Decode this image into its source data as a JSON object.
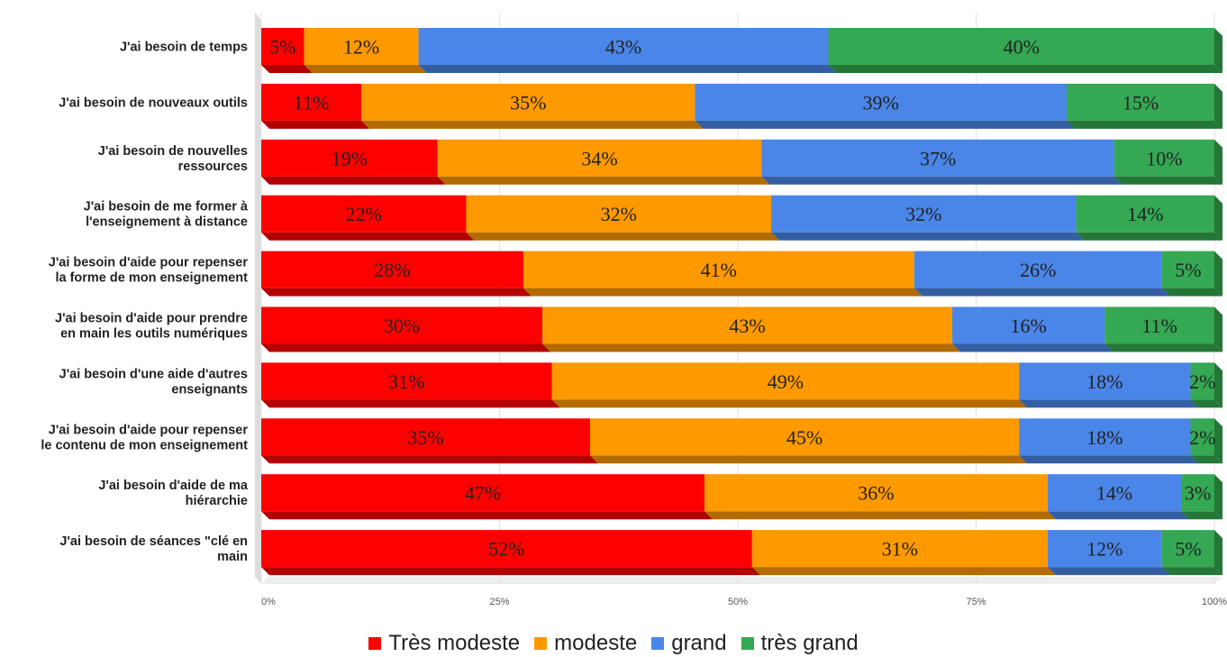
{
  "chart_data": {
    "type": "bar",
    "orientation": "horizontal",
    "stacked": true,
    "percent": true,
    "categories": [
      "J'ai besoin de temps",
      "J'ai besoin de nouveaux outils",
      "J'ai besoin de nouvelles ressources",
      "J'ai besoin de me former à l'enseignement à distance",
      "J'ai besoin d'aide pour repenser la forme de mon enseignement",
      "J'ai besoin d'aide pour prendre en main les outils numériques",
      "J'ai besoin d'une aide d'autres enseignants",
      "J'ai besoin d'aide pour repenser le contenu de mon enseignement",
      "J'ai besoin d'aide de ma hiérarchie",
      "J'ai besoin de séances \"clé en main"
    ],
    "category_lines": [
      [
        "J'ai besoin de temps"
      ],
      [
        "J'ai besoin de nouveaux outils"
      ],
      [
        "J'ai besoin de nouvelles",
        "ressources"
      ],
      [
        "J'ai besoin de me former à",
        "l'enseignement à distance"
      ],
      [
        "J'ai besoin d'aide pour repenser",
        "la forme de mon enseignement"
      ],
      [
        "J'ai besoin d'aide pour prendre",
        "en main les outils numériques"
      ],
      [
        "J'ai besoin d'une aide d'autres",
        "enseignants"
      ],
      [
        "J'ai besoin d'aide pour repenser",
        "le contenu de mon enseignement"
      ],
      [
        "J'ai besoin d'aide de ma",
        "hiérarchie"
      ],
      [
        "J'ai besoin de séances \"clé en",
        "main"
      ]
    ],
    "series": [
      {
        "name": "Très modeste",
        "color": "#ff0000",
        "shade": "#b30000",
        "values": [
          4.5,
          10.5,
          18.5,
          21.5,
          27.5,
          29.5,
          30.5,
          34.5,
          46.5,
          51.5
        ],
        "labels": [
          "5%",
          "11%",
          "19%",
          "22%",
          "28%",
          "30%",
          "31%",
          "35%",
          "47%",
          "52%"
        ]
      },
      {
        "name": "modeste",
        "color": "#ff9900",
        "shade": "#b36b00",
        "values": [
          12,
          35,
          34,
          32,
          41,
          43,
          49,
          45,
          36,
          31
        ],
        "labels": [
          "12%",
          "35%",
          "34%",
          "32%",
          "41%",
          "43%",
          "49%",
          "45%",
          "36%",
          "31%"
        ]
      },
      {
        "name": "grand",
        "color": "#4a86e8",
        "shade": "#345ea2",
        "values": [
          43,
          39,
          37,
          32,
          26,
          16,
          18,
          18,
          14,
          12
        ],
        "labels": [
          "43%",
          "39%",
          "37%",
          "32%",
          "26%",
          "16%",
          "18%",
          "18%",
          "14%",
          "12%"
        ]
      },
      {
        "name": "très grand",
        "color": "#34a853",
        "shade": "#247636",
        "values": [
          40.5,
          15.5,
          10.5,
          14.5,
          5.5,
          11.5,
          2.5,
          2.5,
          3.5,
          5.5
        ],
        "labels": [
          "40%",
          "15%",
          "10%",
          "14%",
          "5%",
          "11%",
          "2%",
          "2%",
          "3%",
          "5%"
        ]
      }
    ],
    "xlim": [
      0,
      100
    ],
    "xticks": [
      "0%",
      "25%",
      "50%",
      "75%",
      "100%"
    ],
    "grid": true,
    "legend_position": "bottom",
    "three_d": true
  }
}
